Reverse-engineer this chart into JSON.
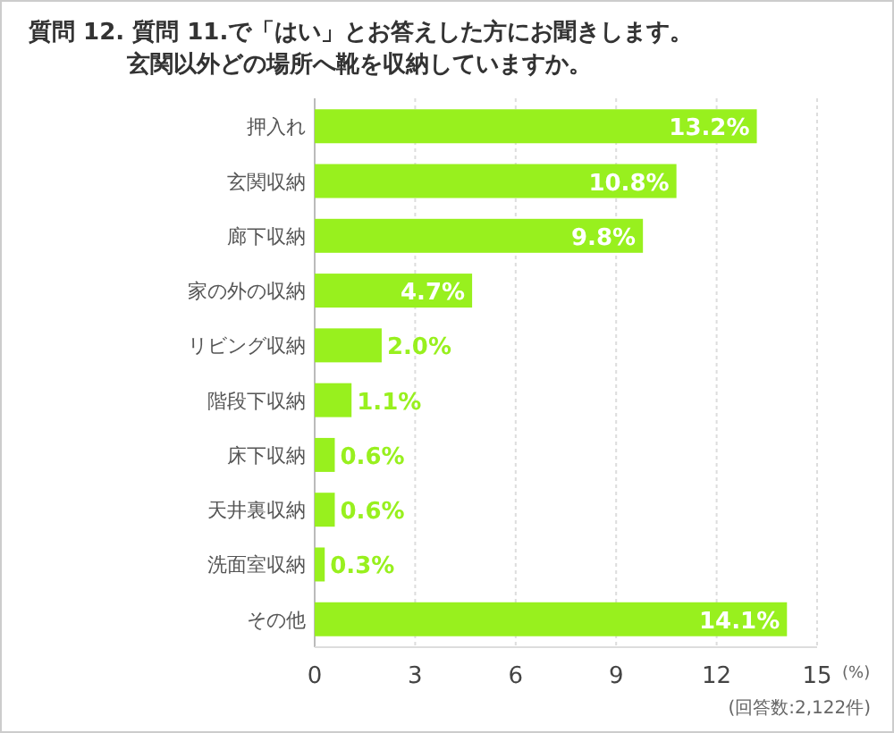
{
  "chart_data": {
    "type": "bar",
    "orientation": "horizontal",
    "title": "質問 12. 質問 11.で「はい」とお答えした方にお聞きします。",
    "subtitle": "玄関以外どの場所へ靴を収納していますか。",
    "xlabel": "(%)",
    "categories": [
      "押入れ",
      "玄関収納",
      "廊下収納",
      "家の外の収納",
      "リビング収納",
      "階段下収納",
      "床下収納",
      "天井裏収納",
      "洗面室収納",
      "その他"
    ],
    "values": [
      13.2,
      10.8,
      9.8,
      4.7,
      2.0,
      1.1,
      0.6,
      0.6,
      0.3,
      14.1
    ],
    "value_labels": [
      "13.2%",
      "10.8%",
      "9.8%",
      "4.7%",
      "2.0%",
      "1.1%",
      "0.6%",
      "0.6%",
      "0.3%",
      "14.1%"
    ],
    "color": "#98f01e",
    "xlim": [
      0,
      15
    ],
    "xticks": [
      0,
      3,
      6,
      9,
      12,
      15
    ],
    "grid": "x",
    "annotations": [
      "(回答数:2,122件)"
    ]
  }
}
